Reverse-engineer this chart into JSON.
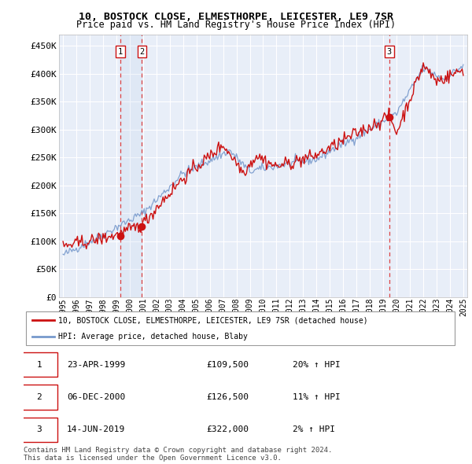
{
  "title_line1": "10, BOSTOCK CLOSE, ELMESTHORPE, LEICESTER, LE9 7SR",
  "title_line2": "Price paid vs. HM Land Registry's House Price Index (HPI)",
  "ylabel_ticks": [
    "£0",
    "£50K",
    "£100K",
    "£150K",
    "£200K",
    "£250K",
    "£300K",
    "£350K",
    "£400K",
    "£450K"
  ],
  "ytick_values": [
    0,
    50000,
    100000,
    150000,
    200000,
    250000,
    300000,
    350000,
    400000,
    450000
  ],
  "ylim": [
    0,
    470000
  ],
  "xlim": [
    1994.7,
    2025.3
  ],
  "plot_bg_color": "#e8eef8",
  "grid_color": "#ffffff",
  "hpi_color": "#7799cc",
  "price_color": "#cc1111",
  "dashed_line_color": "#dd4444",
  "purchase_dates": [
    1999.31,
    2000.92,
    2019.45
  ],
  "purchase_prices": [
    109500,
    126500,
    322000
  ],
  "purchase_labels": [
    "1",
    "2",
    "3"
  ],
  "legend_line1": "10, BOSTOCK CLOSE, ELMESTHORPE, LEICESTER, LE9 7SR (detached house)",
  "legend_line2": "HPI: Average price, detached house, Blaby",
  "table_data": [
    [
      "1",
      "23-APR-1999",
      "£109,500",
      "20% ↑ HPI"
    ],
    [
      "2",
      "06-DEC-2000",
      "£126,500",
      "11% ↑ HPI"
    ],
    [
      "3",
      "14-JUN-2019",
      "£322,000",
      "2% ↑ HPI"
    ]
  ],
  "footnote": "Contains HM Land Registry data © Crown copyright and database right 2024.\nThis data is licensed under the Open Government Licence v3.0.",
  "xtick_years": [
    1995,
    1996,
    1997,
    1998,
    1999,
    2000,
    2001,
    2002,
    2003,
    2004,
    2005,
    2006,
    2007,
    2008,
    2009,
    2010,
    2011,
    2012,
    2013,
    2014,
    2015,
    2016,
    2017,
    2018,
    2019,
    2020,
    2021,
    2022,
    2023,
    2024,
    2025
  ]
}
